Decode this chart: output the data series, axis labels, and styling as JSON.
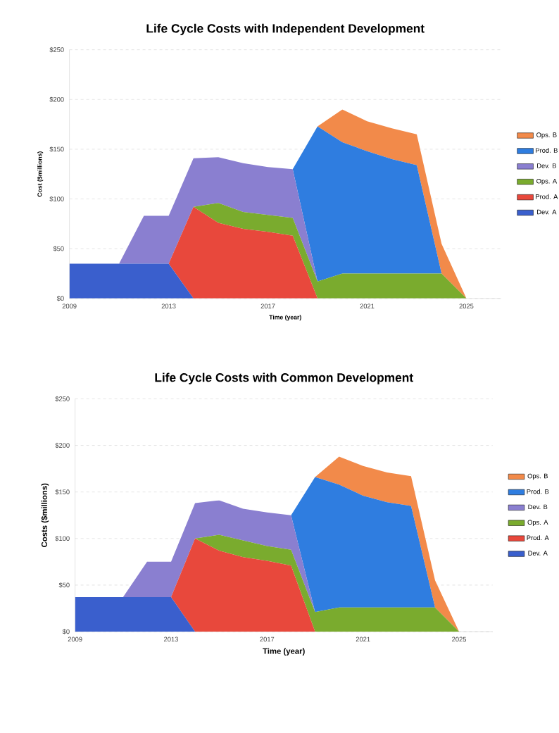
{
  "chart_data": [
    {
      "type": "area",
      "title": "Life Cycle Costs with Independent Development",
      "xlabel": "Time (year)",
      "ylabel": "Cost ($millions)",
      "stacked": true,
      "grid": "y",
      "legend": "right",
      "x": [
        2009,
        2010,
        2011,
        2012,
        2013,
        2014,
        2015,
        2016,
        2017,
        2018,
        2019,
        2020,
        2021,
        2022,
        2023,
        2024,
        2025
      ],
      "xlim": [
        2009,
        2026.4
      ],
      "xticks": [
        2009,
        2013,
        2017,
        2021,
        2025
      ],
      "ylim": [
        0,
        250
      ],
      "yticks": [
        {
          "value": 0,
          "label": "$0"
        },
        {
          "value": 50,
          "label": "$50"
        },
        {
          "value": 100,
          "label": "$100"
        },
        {
          "value": 150,
          "label": "$150"
        },
        {
          "value": 200,
          "label": "$200"
        },
        {
          "value": 250,
          "label": "$250"
        }
      ],
      "series": [
        {
          "name": "Dev. A",
          "color": "#3a5fcd",
          "values": [
            35,
            35,
            35,
            35,
            35,
            0,
            0,
            0,
            0,
            0,
            0,
            0,
            0,
            0,
            0,
            0,
            0
          ]
        },
        {
          "name": "Prod. A",
          "color": "#e8483c",
          "values": [
            0,
            0,
            0,
            0,
            0,
            92,
            76,
            70,
            67,
            63,
            0,
            0,
            0,
            0,
            0,
            0,
            0
          ]
        },
        {
          "name": "Ops. A",
          "color": "#7aab2e",
          "values": [
            0,
            0,
            0,
            0,
            0,
            0,
            20,
            17,
            17,
            18,
            17,
            25,
            25,
            25,
            25,
            25,
            0
          ]
        },
        {
          "name": "Dev. B",
          "color": "#8a7fd0",
          "values": [
            0,
            0,
            0,
            48,
            48,
            49,
            46,
            49,
            48,
            49,
            0,
            0,
            0,
            0,
            0,
            0,
            0
          ]
        },
        {
          "name": "Prod. B",
          "color": "#2f7de0",
          "values": [
            0,
            0,
            0,
            0,
            0,
            0,
            0,
            0,
            0,
            0,
            156,
            132,
            123,
            115,
            109,
            0,
            0
          ]
        },
        {
          "name": "Ops. B",
          "color": "#f28a4a",
          "values": [
            0,
            0,
            0,
            0,
            0,
            0,
            0,
            0,
            0,
            0,
            0,
            33,
            30,
            31,
            31,
            30,
            0
          ]
        }
      ]
    },
    {
      "type": "area",
      "title": "Life Cycle Costs with Common Development",
      "xlabel": "Time (year)",
      "ylabel": "Costs ($millions)",
      "stacked": true,
      "grid": "y",
      "legend": "right",
      "x": [
        2009,
        2010,
        2011,
        2012,
        2013,
        2014,
        2015,
        2016,
        2017,
        2018,
        2019,
        2020,
        2021,
        2022,
        2023,
        2024,
        2025
      ],
      "xlim": [
        2009,
        2026.4
      ],
      "xticks": [
        2009,
        2013,
        2017,
        2021,
        2025
      ],
      "ylim": [
        0,
        250
      ],
      "yticks": [
        {
          "value": 0,
          "label": "$0"
        },
        {
          "value": 50,
          "label": "$50"
        },
        {
          "value": 100,
          "label": "$100"
        },
        {
          "value": 150,
          "label": "$150"
        },
        {
          "value": 200,
          "label": "$200"
        },
        {
          "value": 250,
          "label": "$250"
        }
      ],
      "series": [
        {
          "name": "Dev. A",
          "color": "#3a5fcd",
          "values": [
            37,
            37,
            37,
            37,
            37,
            0,
            0,
            0,
            0,
            0,
            0,
            0,
            0,
            0,
            0,
            0,
            0
          ]
        },
        {
          "name": "Prod. A",
          "color": "#e8483c",
          "values": [
            0,
            0,
            0,
            0,
            0,
            100,
            87,
            80,
            76,
            71,
            0,
            0,
            0,
            0,
            0,
            0,
            0
          ]
        },
        {
          "name": "Ops. A",
          "color": "#7aab2e",
          "values": [
            0,
            0,
            0,
            0,
            0,
            0,
            17,
            18,
            16,
            17,
            21,
            26,
            26,
            26,
            26,
            26,
            0
          ]
        },
        {
          "name": "Dev. B",
          "color": "#8a7fd0",
          "values": [
            0,
            0,
            0,
            38,
            38,
            38,
            37,
            34,
            36,
            37,
            0,
            0,
            0,
            0,
            0,
            0,
            0
          ]
        },
        {
          "name": "Prod. B",
          "color": "#2f7de0",
          "values": [
            0,
            0,
            0,
            0,
            0,
            0,
            0,
            0,
            0,
            0,
            145,
            132,
            120,
            113,
            109,
            0,
            0
          ]
        },
        {
          "name": "Ops. B",
          "color": "#f28a4a",
          "values": [
            0,
            0,
            0,
            0,
            0,
            0,
            0,
            0,
            0,
            0,
            0,
            30,
            32,
            32,
            32,
            29,
            0
          ]
        }
      ]
    }
  ]
}
